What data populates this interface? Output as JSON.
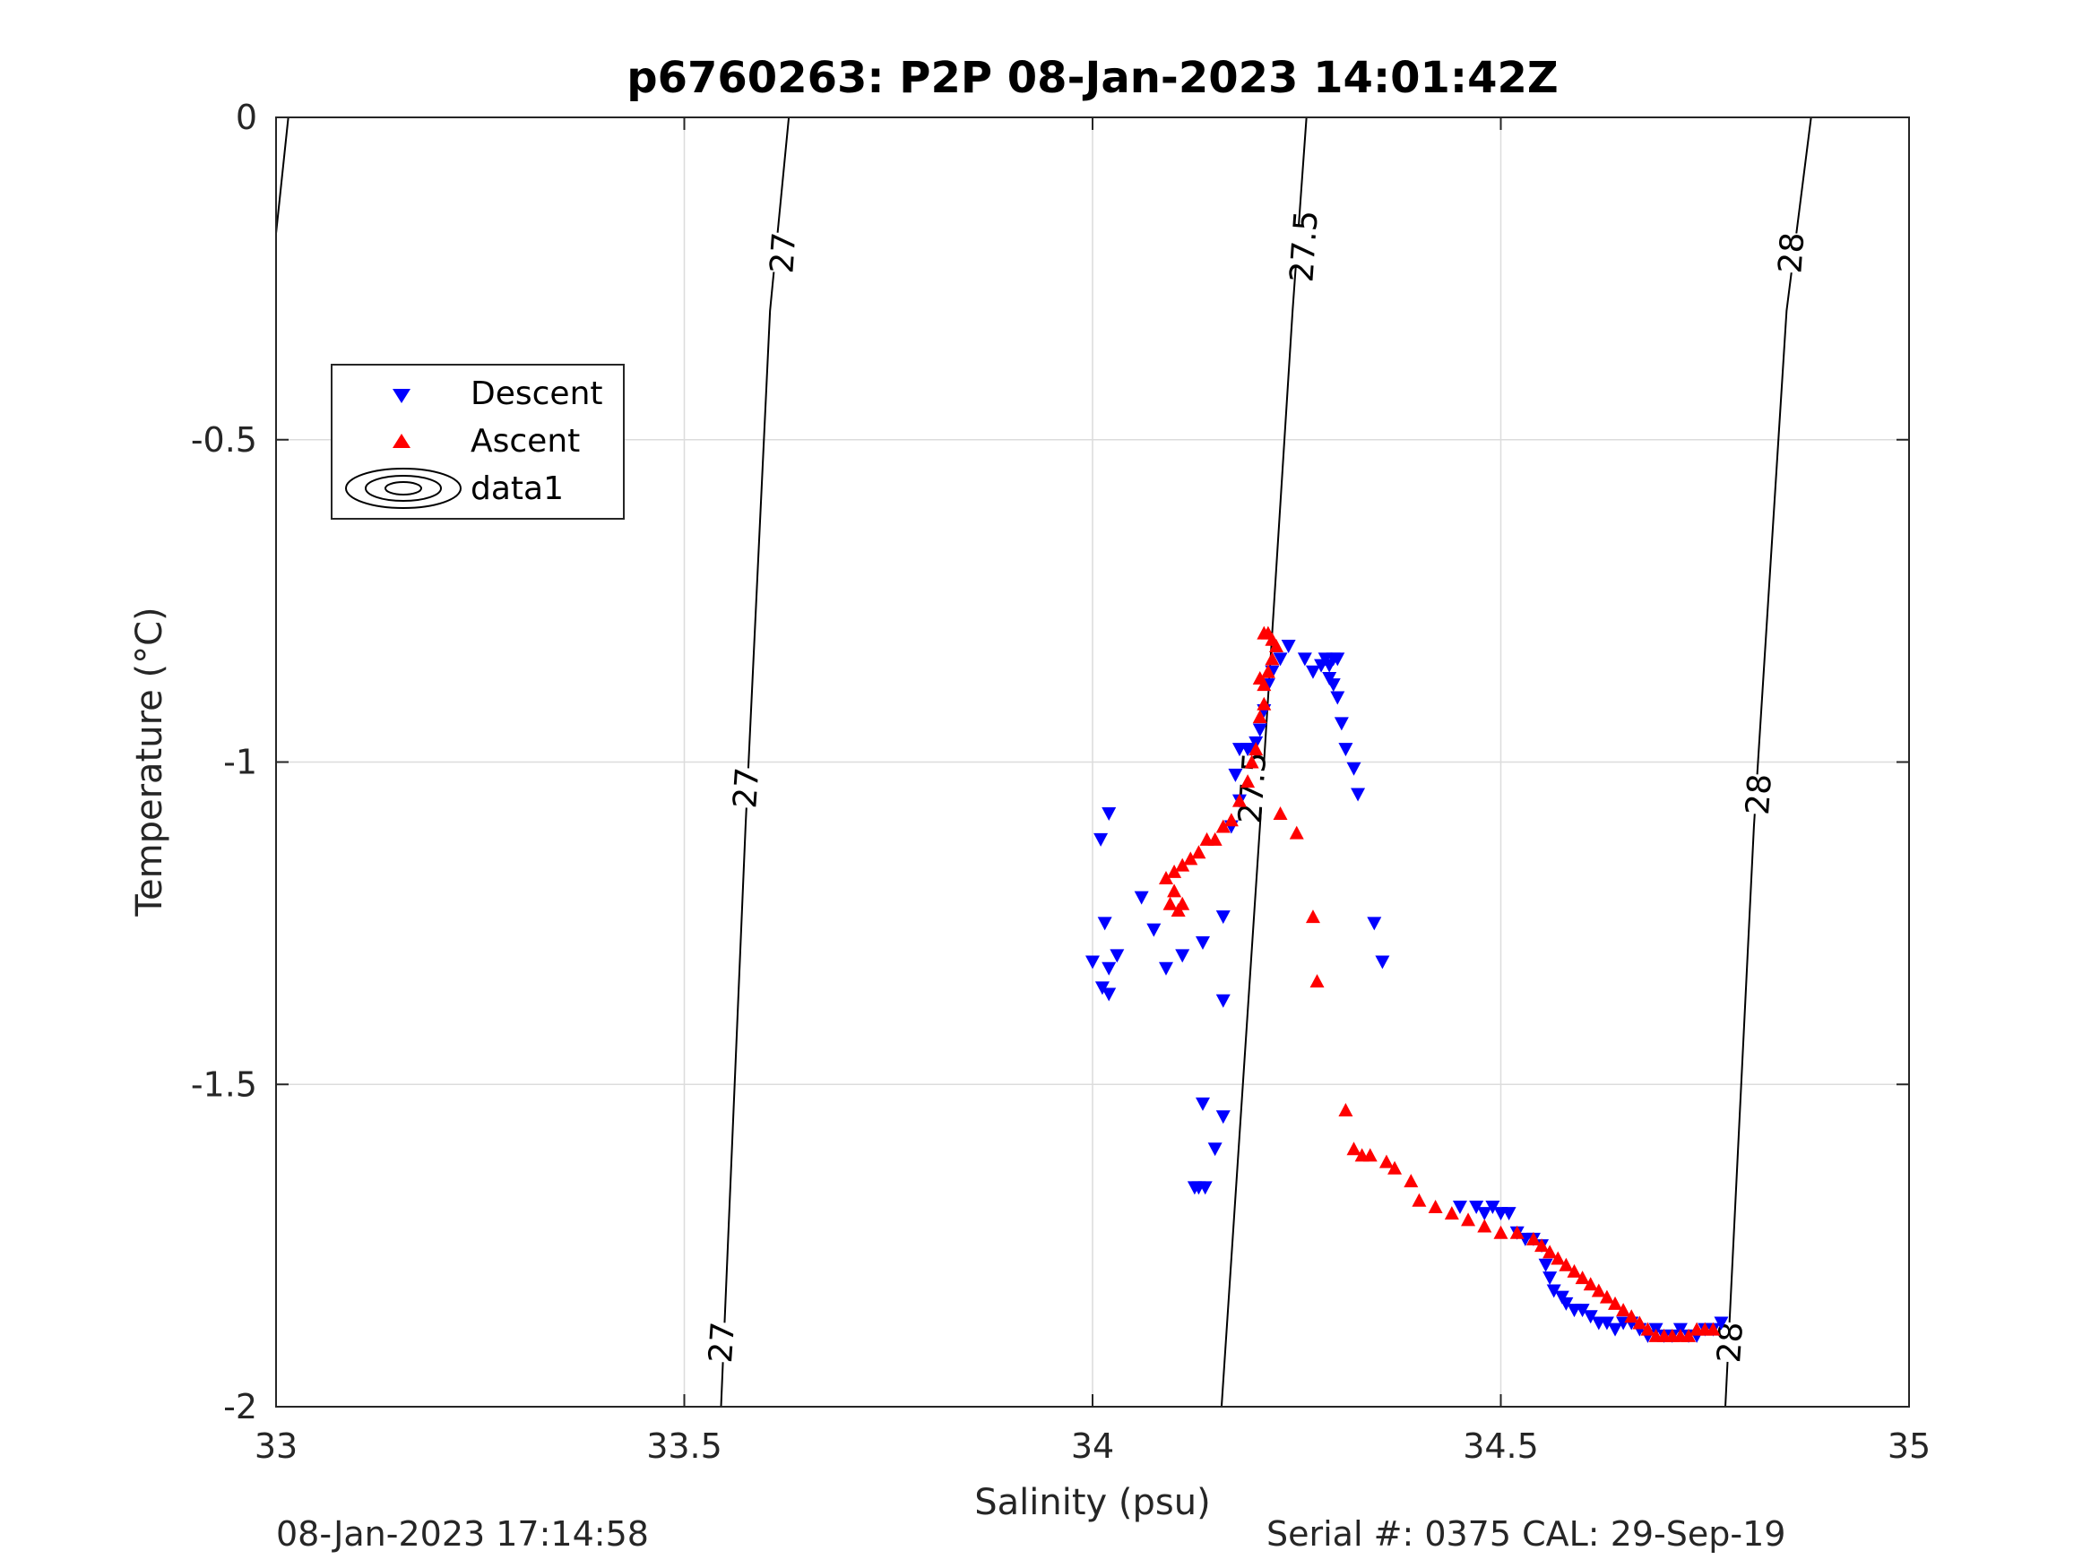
{
  "chart_data": {
    "type": "scatter",
    "title": "p6760263: P2P 08-Jan-2023 14:01:42Z",
    "xlabel": "Salinity (psu)",
    "ylabel": "Temperature (°C)",
    "xlim": [
      33,
      35
    ],
    "ylim": [
      -2,
      0
    ],
    "xticks": [
      33,
      33.5,
      34,
      34.5,
      35
    ],
    "xtick_labels": [
      "33",
      "33.5",
      "34",
      "34.5",
      "35"
    ],
    "yticks": [
      0,
      -0.5,
      -1,
      -1.5,
      -2
    ],
    "ytick_labels": [
      "0",
      "-0.5",
      "-1",
      "-1.5",
      "-2"
    ],
    "grid": true,
    "legend": {
      "position": "upper-left",
      "entries": [
        {
          "label": "Descent",
          "marker": "triangle-down",
          "color": "#0000ff"
        },
        {
          "label": "Ascent",
          "marker": "triangle-up",
          "color": "#ff0000"
        },
        {
          "label": "data1",
          "marker": "contour-ellipse",
          "color": "#000000"
        }
      ]
    },
    "contours": [
      {
        "level": 26.5,
        "points": [
          [
            33.0,
            -0.18
          ],
          [
            33.015,
            0.0
          ]
        ]
      },
      {
        "level": 27,
        "label": "27",
        "points": [
          [
            33.545,
            -2.0
          ],
          [
            33.575,
            -1.1
          ],
          [
            33.605,
            -0.3
          ],
          [
            33.628,
            0.0
          ]
        ],
        "label_positions": [
          [
            33.545,
            -1.9
          ],
          [
            33.575,
            -1.04
          ],
          [
            33.62,
            -0.21
          ]
        ]
      },
      {
        "level": 27.5,
        "label": "27.5",
        "points": [
          [
            34.158,
            -2.0
          ],
          [
            34.205,
            -1.1
          ],
          [
            34.245,
            -0.3
          ],
          [
            34.262,
            0.0
          ]
        ],
        "label_positions": [
          [
            34.195,
            -1.04
          ],
          [
            34.258,
            -0.2
          ]
        ]
      },
      {
        "level": 28,
        "label": "28",
        "points": [
          [
            34.775,
            -2.0
          ],
          [
            34.81,
            -1.1
          ],
          [
            34.85,
            -0.3
          ],
          [
            34.88,
            0.0
          ]
        ],
        "label_positions": [
          [
            34.78,
            -1.9
          ],
          [
            34.815,
            -1.05
          ],
          [
            34.855,
            -0.21
          ]
        ]
      }
    ],
    "series": [
      {
        "name": "Descent",
        "color": "#0000ff",
        "marker": "triangle-down",
        "points": [
          [
            34.02,
            -1.08
          ],
          [
            34.01,
            -1.12
          ],
          [
            34.015,
            -1.25
          ],
          [
            34.0,
            -1.31
          ],
          [
            34.02,
            -1.32
          ],
          [
            34.03,
            -1.3
          ],
          [
            34.012,
            -1.35
          ],
          [
            34.02,
            -1.36
          ],
          [
            34.06,
            -1.21
          ],
          [
            34.075,
            -1.26
          ],
          [
            34.09,
            -1.32
          ],
          [
            34.11,
            -1.3
          ],
          [
            34.135,
            -1.28
          ],
          [
            34.16,
            -1.24
          ],
          [
            34.16,
            -1.37
          ],
          [
            34.135,
            -1.53
          ],
          [
            34.16,
            -1.55
          ],
          [
            34.15,
            -1.6
          ],
          [
            34.13,
            -1.66
          ],
          [
            34.125,
            -1.66
          ],
          [
            34.138,
            -1.66
          ],
          [
            34.17,
            -1.1
          ],
          [
            34.18,
            -1.06
          ],
          [
            34.175,
            -1.02
          ],
          [
            34.18,
            -0.98
          ],
          [
            34.19,
            -0.98
          ],
          [
            34.195,
            -0.98
          ],
          [
            34.2,
            -0.97
          ],
          [
            34.205,
            -0.95
          ],
          [
            34.21,
            -0.92
          ],
          [
            34.215,
            -0.88
          ],
          [
            34.22,
            -0.86
          ],
          [
            34.23,
            -0.84
          ],
          [
            34.24,
            -0.82
          ],
          [
            34.26,
            -0.84
          ],
          [
            34.27,
            -0.86
          ],
          [
            34.28,
            -0.85
          ],
          [
            34.285,
            -0.84
          ],
          [
            34.29,
            -0.85
          ],
          [
            34.295,
            -0.84
          ],
          [
            34.3,
            -0.84
          ],
          [
            34.29,
            -0.87
          ],
          [
            34.295,
            -0.88
          ],
          [
            34.3,
            -0.9
          ],
          [
            34.305,
            -0.94
          ],
          [
            34.31,
            -0.98
          ],
          [
            34.32,
            -1.01
          ],
          [
            34.325,
            -1.05
          ],
          [
            34.345,
            -1.25
          ],
          [
            34.355,
            -1.31
          ],
          [
            34.45,
            -1.69
          ],
          [
            34.47,
            -1.69
          ],
          [
            34.48,
            -1.7
          ],
          [
            34.49,
            -1.69
          ],
          [
            34.5,
            -1.7
          ],
          [
            34.51,
            -1.7
          ],
          [
            34.52,
            -1.73
          ],
          [
            34.53,
            -1.74
          ],
          [
            34.54,
            -1.74
          ],
          [
            34.55,
            -1.75
          ],
          [
            34.555,
            -1.78
          ],
          [
            34.56,
            -1.8
          ],
          [
            34.565,
            -1.82
          ],
          [
            34.575,
            -1.83
          ],
          [
            34.58,
            -1.84
          ],
          [
            34.59,
            -1.85
          ],
          [
            34.6,
            -1.85
          ],
          [
            34.61,
            -1.86
          ],
          [
            34.62,
            -1.87
          ],
          [
            34.63,
            -1.87
          ],
          [
            34.64,
            -1.88
          ],
          [
            34.65,
            -1.87
          ],
          [
            34.66,
            -1.87
          ],
          [
            34.67,
            -1.88
          ],
          [
            34.68,
            -1.89
          ],
          [
            34.69,
            -1.88
          ],
          [
            34.7,
            -1.89
          ],
          [
            34.71,
            -1.89
          ],
          [
            34.72,
            -1.88
          ],
          [
            34.73,
            -1.89
          ],
          [
            34.74,
            -1.89
          ],
          [
            34.75,
            -1.88
          ],
          [
            34.76,
            -1.88
          ],
          [
            34.77,
            -1.87
          ]
        ]
      },
      {
        "name": "Ascent",
        "color": "#ff0000",
        "marker": "triangle-up",
        "points": [
          [
            34.21,
            -0.8
          ],
          [
            34.215,
            -0.8
          ],
          [
            34.22,
            -0.81
          ],
          [
            34.225,
            -0.82
          ],
          [
            34.22,
            -0.84
          ],
          [
            34.215,
            -0.86
          ],
          [
            34.21,
            -0.88
          ],
          [
            34.205,
            -0.87
          ],
          [
            34.21,
            -0.91
          ],
          [
            34.205,
            -0.93
          ],
          [
            34.2,
            -0.98
          ],
          [
            34.195,
            -1.0
          ],
          [
            34.19,
            -1.03
          ],
          [
            34.18,
            -1.06
          ],
          [
            34.17,
            -1.09
          ],
          [
            34.16,
            -1.1
          ],
          [
            34.15,
            -1.12
          ],
          [
            34.14,
            -1.12
          ],
          [
            34.13,
            -1.14
          ],
          [
            34.12,
            -1.15
          ],
          [
            34.11,
            -1.16
          ],
          [
            34.1,
            -1.17
          ],
          [
            34.09,
            -1.18
          ],
          [
            34.1,
            -1.2
          ],
          [
            34.11,
            -1.22
          ],
          [
            34.105,
            -1.23
          ],
          [
            34.095,
            -1.22
          ],
          [
            34.23,
            -1.08
          ],
          [
            34.25,
            -1.11
          ],
          [
            34.27,
            -1.24
          ],
          [
            34.275,
            -1.34
          ],
          [
            34.31,
            -1.54
          ],
          [
            34.32,
            -1.6
          ],
          [
            34.33,
            -1.61
          ],
          [
            34.34,
            -1.61
          ],
          [
            34.36,
            -1.62
          ],
          [
            34.37,
            -1.63
          ],
          [
            34.39,
            -1.65
          ],
          [
            34.4,
            -1.68
          ],
          [
            34.42,
            -1.69
          ],
          [
            34.44,
            -1.7
          ],
          [
            34.46,
            -1.71
          ],
          [
            34.48,
            -1.72
          ],
          [
            34.5,
            -1.73
          ],
          [
            34.52,
            -1.73
          ],
          [
            34.54,
            -1.74
          ],
          [
            34.55,
            -1.75
          ],
          [
            34.56,
            -1.76
          ],
          [
            34.57,
            -1.77
          ],
          [
            34.58,
            -1.78
          ],
          [
            34.59,
            -1.79
          ],
          [
            34.6,
            -1.8
          ],
          [
            34.61,
            -1.81
          ],
          [
            34.62,
            -1.82
          ],
          [
            34.63,
            -1.83
          ],
          [
            34.64,
            -1.84
          ],
          [
            34.65,
            -1.85
          ],
          [
            34.66,
            -1.86
          ],
          [
            34.67,
            -1.87
          ],
          [
            34.68,
            -1.88
          ],
          [
            34.69,
            -1.89
          ],
          [
            34.7,
            -1.89
          ],
          [
            34.71,
            -1.89
          ],
          [
            34.72,
            -1.89
          ],
          [
            34.73,
            -1.89
          ],
          [
            34.74,
            -1.88
          ],
          [
            34.75,
            -1.88
          ],
          [
            34.76,
            -1.88
          ]
        ]
      }
    ]
  },
  "footer": {
    "timestamp": "08-Jan-2023 17:14:58",
    "serial": "Serial #: 0375  CAL: 29-Sep-19"
  }
}
